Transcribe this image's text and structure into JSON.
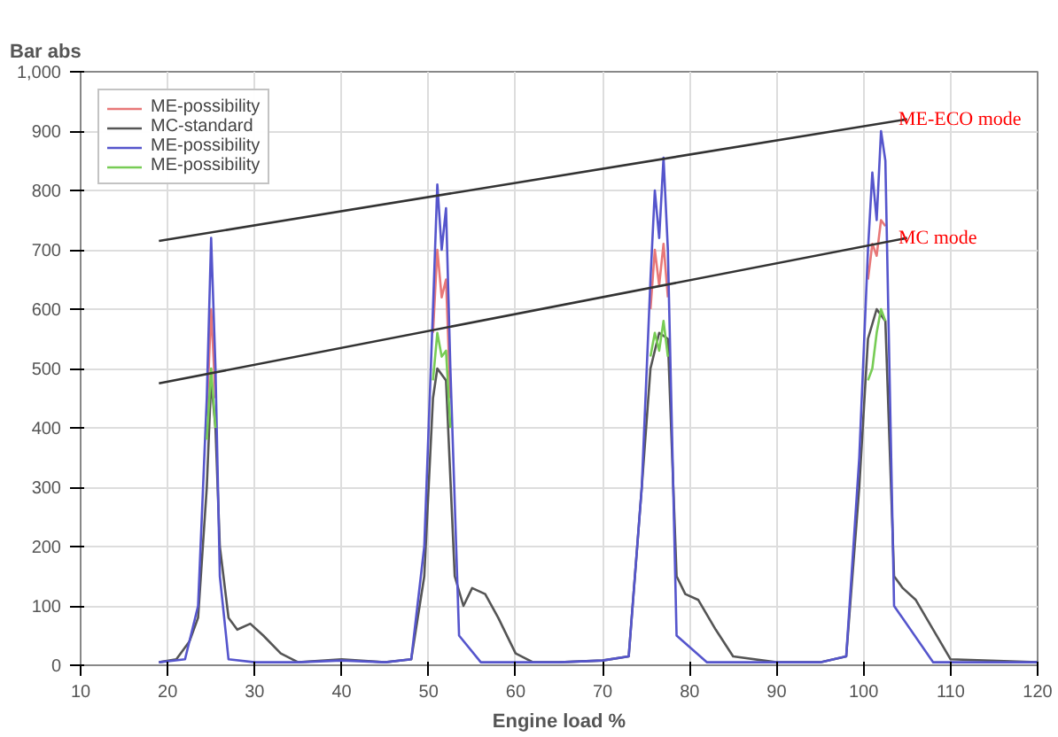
{
  "chart_data": {
    "type": "line",
    "xlabel": "Engine load %",
    "ylabel": "Bar abs",
    "xlim": [
      10,
      120
    ],
    "ylim": [
      0,
      1000
    ],
    "xticks": [
      10,
      20,
      30,
      40,
      50,
      60,
      70,
      80,
      90,
      100,
      110,
      120
    ],
    "yticks": [
      0,
      100,
      200,
      300,
      400,
      500,
      600,
      700,
      800,
      900,
      {
        "value": 1000,
        "label": "1,000"
      }
    ],
    "grid": true,
    "legend": "top left",
    "marker": "none",
    "line_style": "solid",
    "x": [
      19,
      22,
      23.5,
      24.5,
      25,
      25.5,
      26,
      27,
      30,
      35,
      40,
      45,
      48,
      49.5,
      50.5,
      51,
      51.5,
      52,
      52.5,
      53.5,
      56,
      60,
      65,
      70,
      73,
      74.5,
      75.5,
      76,
      76.5,
      77,
      77.5,
      78.5,
      82,
      90,
      95,
      98,
      99.5,
      100.5,
      101,
      101.5,
      102,
      102.5,
      103.5,
      108,
      120
    ],
    "series": [
      {
        "name": "ME-possibility",
        "color": "#e87878",
        "values": [
          null,
          null,
          null,
          420,
          600,
          450,
          null,
          null,
          null,
          null,
          null,
          null,
          null,
          null,
          560,
          700,
          620,
          650,
          450,
          null,
          null,
          null,
          null,
          null,
          null,
          null,
          600,
          700,
          640,
          710,
          620,
          null,
          null,
          null,
          null,
          null,
          null,
          650,
          710,
          690,
          750,
          740,
          null,
          null,
          null
        ]
      },
      {
        "name": "MC-standard",
        "color": "#555555",
        "x": [
          19,
          21,
          22.5,
          23.5,
          24.5,
          25,
          25.5,
          26,
          27,
          28,
          29.5,
          31,
          33,
          35,
          40,
          45,
          48,
          49.5,
          50.5,
          51,
          52,
          53,
          54,
          55,
          56.5,
          58,
          60,
          62,
          65,
          70,
          73,
          74.5,
          75.5,
          76.5,
          77.5,
          78.5,
          79.5,
          81,
          83,
          85,
          90,
          95,
          98,
          99.5,
          100.5,
          101.5,
          102.5,
          103.5,
          104.5,
          106,
          108,
          110,
          120
        ],
        "values": [
          5,
          10,
          40,
          80,
          300,
          480,
          400,
          200,
          80,
          60,
          70,
          50,
          20,
          5,
          10,
          5,
          10,
          150,
          450,
          500,
          480,
          150,
          100,
          130,
          120,
          80,
          20,
          5,
          5,
          8,
          15,
          300,
          500,
          560,
          550,
          150,
          120,
          110,
          60,
          15,
          5,
          5,
          15,
          300,
          550,
          600,
          580,
          150,
          130,
          110,
          60,
          10,
          5
        ]
      },
      {
        "name": "ME-possibility",
        "color": "#5555cc",
        "values": [
          5,
          10,
          100,
          450,
          720,
          500,
          150,
          10,
          5,
          5,
          8,
          5,
          10,
          200,
          600,
          810,
          700,
          770,
          500,
          50,
          5,
          5,
          5,
          8,
          15,
          300,
          650,
          800,
          720,
          855,
          700,
          50,
          5,
          5,
          5,
          15,
          350,
          700,
          830,
          750,
          900,
          850,
          100,
          5,
          5
        ]
      },
      {
        "name": "ME-possibility",
        "color": "#77cc55",
        "values": [
          null,
          null,
          null,
          380,
          500,
          400,
          null,
          null,
          null,
          null,
          null,
          null,
          null,
          null,
          480,
          560,
          520,
          530,
          400,
          null,
          null,
          null,
          null,
          null,
          null,
          null,
          520,
          560,
          530,
          580,
          520,
          null,
          null,
          null,
          null,
          null,
          null,
          480,
          500,
          560,
          600,
          580,
          null,
          null,
          null
        ]
      },
      {
        "type": "line",
        "color": "#333333",
        "x": [
          19,
          105
        ],
        "values": [
          715,
          920
        ]
      },
      {
        "type": "line",
        "color": "#333333",
        "x": [
          19,
          105
        ],
        "values": [
          475,
          720
        ]
      }
    ],
    "annotations": [
      {
        "text": "ME-ECO mode",
        "x": 104,
        "y": 920
      },
      {
        "text": "MC mode",
        "x": 104,
        "y": 720
      }
    ]
  }
}
